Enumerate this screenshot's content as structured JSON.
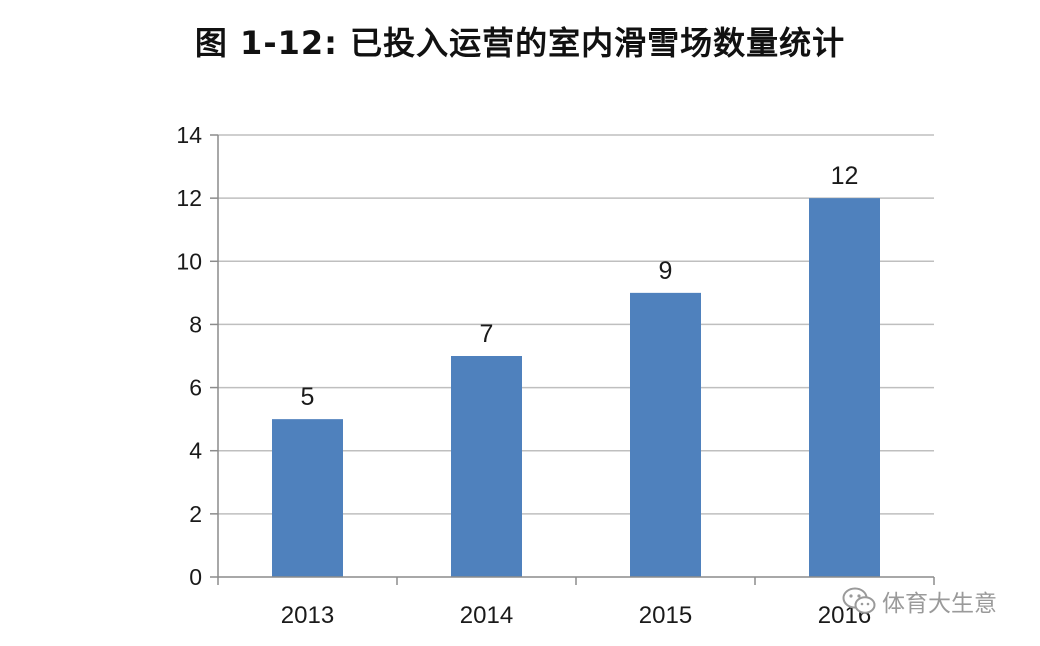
{
  "chart_data": {
    "type": "bar",
    "title": "图 1-12: 已投入运营的室内滑雪场数量统计",
    "categories": [
      "2013",
      "2014",
      "2015",
      "2016"
    ],
    "values": [
      5,
      7,
      9,
      12
    ],
    "data_labels": [
      "5",
      "7",
      "9",
      "12"
    ],
    "xlabel": "",
    "ylabel": "",
    "ylim": [
      0,
      14
    ],
    "yticks": [
      0,
      2,
      4,
      6,
      8,
      10,
      12,
      14
    ],
    "grid": true,
    "legend": "none",
    "bar_color": "#4F81BD",
    "grid_color": "#BFBFBF"
  },
  "watermark": {
    "text": "体育大生意",
    "icon": "wechat-logo-icon"
  }
}
